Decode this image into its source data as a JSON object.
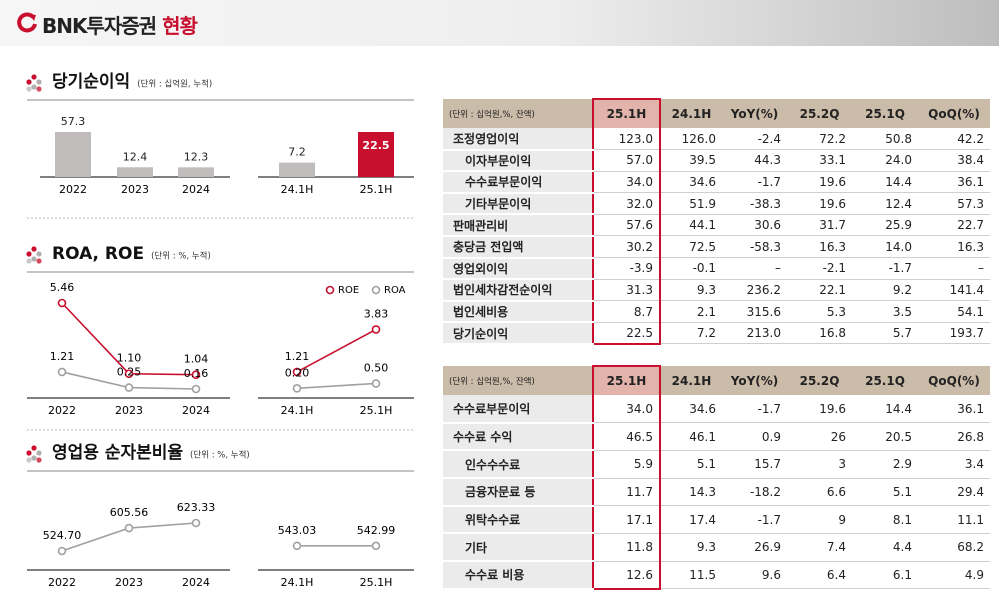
{
  "header": {
    "brand": "BNK투자증권",
    "title": "현황"
  },
  "chart_data": [
    {
      "type": "bar",
      "title": "당기순이익",
      "unit": "(단위 : 십억원, 누적)",
      "groups": [
        {
          "categories": [
            "2022",
            "2023",
            "2024"
          ],
          "values": [
            57.3,
            12.4,
            12.3
          ],
          "colors": [
            "#c0bcbc",
            "#c0bcbc",
            "#c0bcbc"
          ]
        },
        {
          "categories": [
            "24.1H",
            "25.1H"
          ],
          "values": [
            7.2,
            22.5
          ],
          "colors": [
            "#c0bcbc",
            "#c8102e"
          ]
        }
      ]
    },
    {
      "type": "line",
      "title": "ROA, ROE",
      "unit": "(단위 : %, 누적)",
      "series": [
        {
          "name": "ROE",
          "color": "#c8102e"
        },
        {
          "name": "ROA",
          "color": "#a0a0a0"
        }
      ],
      "groups": [
        {
          "categories": [
            "2022",
            "2023",
            "2024"
          ],
          "values": [
            [
              5.46,
              1.1,
              1.04
            ],
            [
              1.21,
              0.25,
              0.16
            ]
          ],
          "value_labels": [
            [
              "5.46",
              "1.10",
              "1.04"
            ],
            [
              "1.21",
              "0.25",
              "0.16"
            ]
          ]
        },
        {
          "categories": [
            "24.1H",
            "25.1H"
          ],
          "values": [
            [
              1.21,
              3.83
            ],
            [
              0.2,
              0.5
            ]
          ],
          "value_labels": [
            [
              "1.21",
              "3.83"
            ],
            [
              "0.20",
              "0.50"
            ]
          ]
        }
      ]
    },
    {
      "type": "line",
      "title": "영업용 순자본비율",
      "unit": "(단위 : %, 누적)",
      "series": [
        {
          "color": "#a0a0a0"
        }
      ],
      "groups": [
        {
          "categories": [
            "2022",
            "2023",
            "2024"
          ],
          "values": [
            [
              524.7,
              605.56,
              623.33
            ]
          ],
          "value_labels": [
            [
              "524.70",
              "605.56",
              "623.33"
            ]
          ]
        },
        {
          "categories": [
            "24.1H",
            "25.1H"
          ],
          "values": [
            [
              543.03,
              542.99
            ]
          ],
          "value_labels": [
            [
              "543.03",
              "542.99"
            ]
          ]
        }
      ]
    }
  ],
  "tables": [
    {
      "unit": "(단위 : 십억원,%, 잔액)",
      "columns": [
        "25.1H",
        "24.1H",
        "YoY(%)",
        "25.2Q",
        "25.1Q",
        "QoQ(%)"
      ],
      "rows": [
        {
          "label": "조정영업이익",
          "cells": [
            "123.0",
            "126.0",
            "-2.4",
            "72.2",
            "50.8",
            "42.2"
          ]
        },
        {
          "label": "이자부문이익",
          "cells": [
            "57.0",
            "39.5",
            "44.3",
            "33.1",
            "24.0",
            "38.4"
          ]
        },
        {
          "label": "수수료부문이익",
          "cells": [
            "34.0",
            "34.6",
            "-1.7",
            "19.6",
            "14.4",
            "36.1"
          ]
        },
        {
          "label": "기타부문이익",
          "cells": [
            "32.0",
            "51.9",
            "-38.3",
            "19.6",
            "12.4",
            "57.3"
          ]
        },
        {
          "label": "판매관리비",
          "cells": [
            "57.6",
            "44.1",
            "30.6",
            "31.7",
            "25.9",
            "22.7"
          ]
        },
        {
          "label": "충당금 전입액",
          "cells": [
            "30.2",
            "72.5",
            "-58.3",
            "16.3",
            "14.0",
            "16.3"
          ]
        },
        {
          "label": "영업외이익",
          "cells": [
            "-3.9",
            "-0.1",
            "–",
            "-2.1",
            "-1.7",
            "–"
          ]
        },
        {
          "label": "법인세차감전순이익",
          "cells": [
            "31.3",
            "9.3",
            "236.2",
            "22.1",
            "9.2",
            "141.4"
          ]
        },
        {
          "label": "법인세비용",
          "cells": [
            "8.7",
            "2.1",
            "315.6",
            "5.3",
            "3.5",
            "54.1"
          ]
        },
        {
          "label": "당기순이익",
          "cells": [
            "22.5",
            "7.2",
            "213.0",
            "16.8",
            "5.7",
            "193.7"
          ]
        }
      ]
    },
    {
      "unit": "(단위 : 십억원,%, 잔액)",
      "columns": [
        "25.1H",
        "24.1H",
        "YoY(%)",
        "25.2Q",
        "25.1Q",
        "QoQ(%)"
      ],
      "rows": [
        {
          "label": "수수료부문이익",
          "cells": [
            "34.0",
            "34.6",
            "-1.7",
            "19.6",
            "14.4",
            "36.1"
          ]
        },
        {
          "label": "수수료 수익",
          "cells": [
            "46.5",
            "46.1",
            "0.9",
            "26",
            "20.5",
            "26.8"
          ]
        },
        {
          "label": "인수수수료",
          "cells": [
            "5.9",
            "5.1",
            "15.7",
            "3",
            "2.9",
            "3.4"
          ]
        },
        {
          "label": "금융자문료 등",
          "cells": [
            "11.7",
            "14.3",
            "-18.2",
            "6.6",
            "5.1",
            "29.4"
          ]
        },
        {
          "label": "위탁수수료",
          "cells": [
            "17.1",
            "17.4",
            "-1.7",
            "9",
            "8.1",
            "11.1"
          ]
        },
        {
          "label": "기타",
          "cells": [
            "11.8",
            "9.3",
            "26.9",
            "7.4",
            "4.4",
            "68.2"
          ]
        },
        {
          "label": "수수료 비용",
          "cells": [
            "12.6",
            "11.5",
            "9.6",
            "6.4",
            "6.1",
            "4.9"
          ]
        }
      ]
    }
  ]
}
